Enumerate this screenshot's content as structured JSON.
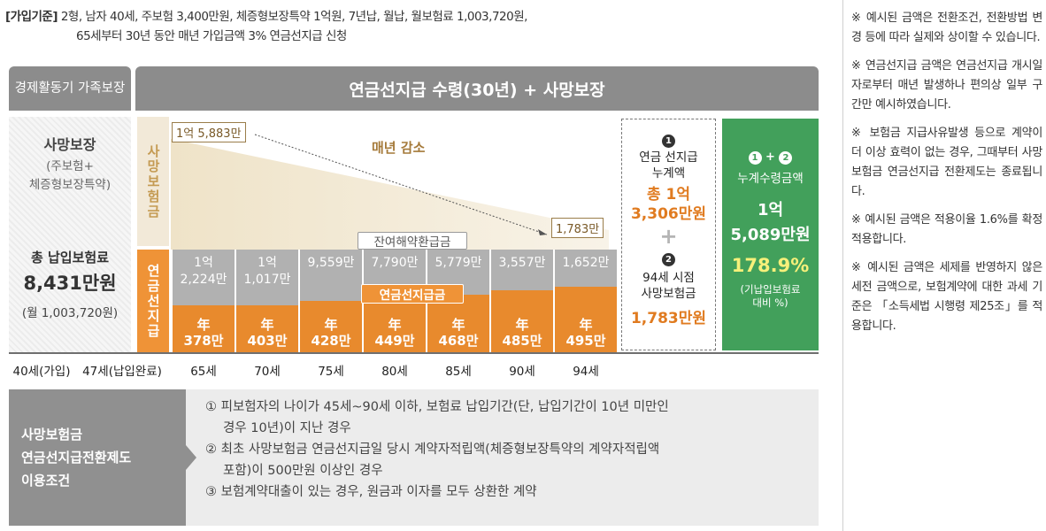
{
  "basis": {
    "label": "[가입기준]",
    "line1": "2형, 남자 40세, 주보험 3,400만원, 체증형보장특약 1억원, 7년납, 월납, 월보험료 1,003,720원,",
    "line2": "65세부터 30년 동안 매년 가입금액 3% 연금선지급 신청"
  },
  "header": {
    "left": "경제활동기 가족보장",
    "main": "연금선지급 수령(30년) + 사망보장"
  },
  "left_panel": {
    "death_title": "사망보장",
    "death_sub1": "(주보험+",
    "death_sub2": "체증형보장특약)",
    "premium_title": "총 납입보험료",
    "premium_amount": "8,431만원",
    "premium_monthly": "(월 1,003,720원)"
  },
  "vertical_labels": {
    "death_benefit": "사망보험금",
    "annuity": "연금선지급"
  },
  "diagram": {
    "start_value": "1억 5,883만",
    "end_value": "1,783만",
    "trend_label": "매년 감소",
    "remaining_label": "잔여해약환급금",
    "annuity_label": "연금선지급금",
    "annual_prefix": "年",
    "columns": [
      {
        "remaining": "1억 2,224만",
        "annual": "378만"
      },
      {
        "remaining": "1억 1,017만",
        "annual": "403만"
      },
      {
        "remaining": "9,559만",
        "annual": "428만"
      },
      {
        "remaining": "7,790만",
        "annual": "449만"
      },
      {
        "remaining": "5,779만",
        "annual": "468만"
      },
      {
        "remaining": "3,557만",
        "annual": "485만"
      },
      {
        "remaining": "1,652만",
        "annual": "495만"
      }
    ]
  },
  "axis": [
    "40세(가입)",
    "47세(납입완료)",
    "65세",
    "70세",
    "75세",
    "80세",
    "85세",
    "90세",
    "94세"
  ],
  "box_cumulative": {
    "num": "1",
    "line1": "연금 선지급",
    "line2": "누계액",
    "amount1": "총 1억",
    "amount2": "3,306만원",
    "plus": "+",
    "num2": "2",
    "death_line1": "94세 시점",
    "death_line2": "사망보험금",
    "death_amount": "1,783만원"
  },
  "box_total": {
    "num1": "1",
    "plus": "+",
    "num2": "2",
    "title": "누계수령금액",
    "amount1": "1억",
    "amount2": "5,089만원",
    "ratio": "178.9%",
    "ratio_note1": "(기납입보험료",
    "ratio_note2": "대비 %)"
  },
  "conditions": {
    "title1": "사망보험금",
    "title2": "연금선지급전환제도",
    "title3": "이용조건",
    "item1_a": "① 피보험자의 나이가 45세~90세 이하, 보험료 납입기간(단, 납입기간이 10년 미만인",
    "item1_b": "경우 10년)이 지난 경우",
    "item2_a": "② 최초 사망보험금 연금선지급일 당시 계약자적립액(체증형보장특약의 계약자적립액",
    "item2_b": "포함)이 500만원 이상인 경우",
    "item3": "③ 보험계약대출이 있는 경우, 원금과 이자를 모두 상환한 계약"
  },
  "notes": [
    "※ 예시된 금액은 전환조건, 전환방법 변경 등에 따라 실제와 상이할 수 있습니다.",
    "※ 연금선지급 금액은 연금선지급 개시일자로부터 매년 발생하나 편의상 일부 구간만 예시하였습니다.",
    "※ 보험금 지급사유발생 등으로 계약이 더 이상 효력이 없는 경우, 그때부터 사망보험금 연금선지급 전환제도는 종료됩니다.",
    "※ 예시된 금액은 적용이율 1.6%를 확정 적용합니다.",
    "※ 예시된 금액은 세제를 반영하지 않은 세전 금액으로, 보험계약에 대한 과세 기준은 「소득세법 시행령 제25조」를 적용합니다."
  ],
  "colors": {
    "gray_header": "#8c8c8c",
    "orange": "#e88a2d",
    "green": "#42a05b",
    "beige": "#f2e9d8"
  }
}
